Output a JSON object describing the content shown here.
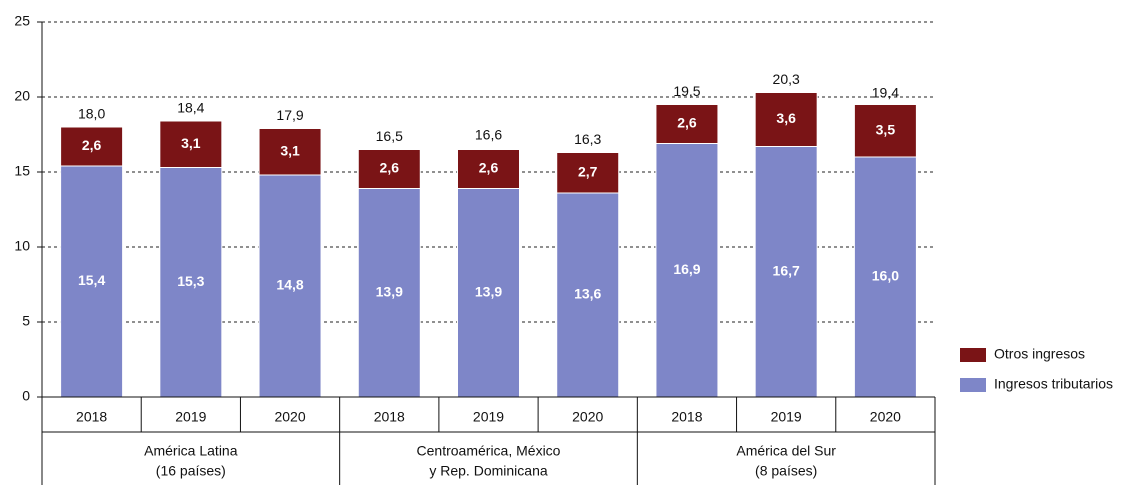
{
  "chart_data": {
    "type": "stacked-bar",
    "groups": [
      {
        "label": [
          "América Latina",
          "(16 países)"
        ],
        "categories": [
          "2018",
          "2019",
          "2020"
        ]
      },
      {
        "label": [
          "Centroamérica, México",
          "y Rep. Dominicana"
        ],
        "categories": [
          "2018",
          "2019",
          "2020"
        ]
      },
      {
        "label": [
          "América del Sur",
          "(8 países)"
        ],
        "categories": [
          "2018",
          "2019",
          "2020"
        ]
      }
    ],
    "series": [
      {
        "name": "Ingresos tributarios",
        "color": "#7e86c8",
        "values": [
          15.4,
          15.3,
          14.8,
          13.9,
          13.9,
          13.6,
          16.9,
          16.7,
          16.0
        ],
        "value_labels": [
          "15,4",
          "15,3",
          "14,8",
          "13,9",
          "13,9",
          "13,6",
          "16,9",
          "16,7",
          "16,0"
        ]
      },
      {
        "name": "Otros ingresos",
        "color": "#7a1416",
        "values": [
          2.6,
          3.1,
          3.1,
          2.6,
          2.6,
          2.7,
          2.6,
          3.6,
          3.5
        ],
        "value_labels": [
          "2,6",
          "3,1",
          "3,1",
          "2,6",
          "2,6",
          "2,7",
          "2,6",
          "3,6",
          "3,5"
        ]
      }
    ],
    "totals": {
      "values": [
        18.0,
        18.4,
        17.9,
        16.5,
        16.6,
        16.3,
        19.5,
        20.3,
        19.4
      ],
      "value_labels": [
        "18,0",
        "18,4",
        "17,9",
        "16,5",
        "16,6",
        "16,3",
        "19,5",
        "20,3",
        "19,4"
      ]
    },
    "ylim": [
      0,
      25
    ],
    "yticks": [
      0,
      5,
      10,
      15,
      20,
      25
    ],
    "grid": true
  }
}
